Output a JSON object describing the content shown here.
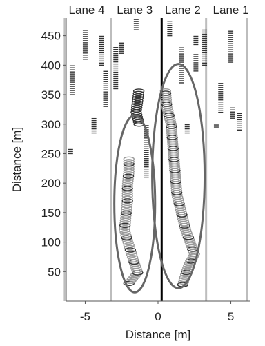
{
  "chart_data": {
    "type": "scatter",
    "title": "",
    "xlabel": "Distance [m]",
    "ylabel": "Distance [m]",
    "xlim": [
      -6.3,
      6.3
    ],
    "ylim": [
      0,
      480
    ],
    "x_ticks": [
      -5,
      0,
      5
    ],
    "y_ticks": [
      50,
      100,
      150,
      200,
      250,
      300,
      350,
      400,
      450
    ],
    "grid": false,
    "lane_labels": [
      {
        "label": "Lane 4",
        "center_x": -4.9
      },
      {
        "label": "Lane 3",
        "center_x": -1.6
      },
      {
        "label": "Lane 2",
        "center_x": 1.7
      },
      {
        "label": "Lane 1",
        "center_x": 5.0
      }
    ],
    "lane_boundaries": [
      -6.4,
      -3.2,
      3.3,
      6.1
    ],
    "centerline_x": 0.25,
    "colors": {
      "boundary": "#bdbdbd",
      "centerline": "#000000",
      "marker_dark": "#333333",
      "marker_light": "#9a9a9a",
      "ellipse": "#666666"
    },
    "dash_tracks": [
      {
        "x": -5.9,
        "y_from": 350,
        "y_to": 400
      },
      {
        "x": -5.0,
        "y_from": 410,
        "y_to": 460
      },
      {
        "x": -3.6,
        "y_from": 330,
        "y_to": 390
      },
      {
        "x": -3.9,
        "y_from": 400,
        "y_to": 450
      },
      {
        "x": -4.4,
        "y_from": 285,
        "y_to": 310
      },
      {
        "x": -6.0,
        "y_from": 250,
        "y_to": 258
      },
      {
        "x": -2.9,
        "y_from": 360,
        "y_to": 430
      },
      {
        "x": -2.5,
        "y_from": 420,
        "y_to": 440
      },
      {
        "x": -1.5,
        "y_from": 460,
        "y_to": 478
      },
      {
        "x": -0.8,
        "y_from": 210,
        "y_to": 300
      },
      {
        "x": 0.8,
        "y_from": 450,
        "y_to": 475
      },
      {
        "x": 1.6,
        "y_from": 370,
        "y_to": 430
      },
      {
        "x": 2.6,
        "y_from": 390,
        "y_to": 420
      },
      {
        "x": 2.6,
        "y_from": 435,
        "y_to": 450
      },
      {
        "x": 3.2,
        "y_from": 400,
        "y_to": 460
      },
      {
        "x": 4.0,
        "y_from": 295,
        "y_to": 300
      },
      {
        "x": 4.3,
        "y_from": 320,
        "y_to": 370
      },
      {
        "x": 5.0,
        "y_from": 405,
        "y_to": 460
      },
      {
        "x": 5.1,
        "y_from": 310,
        "y_to": 330
      },
      {
        "x": 5.6,
        "y_from": 290,
        "y_to": 320
      },
      {
        "x": 2.0,
        "y_from": 285,
        "y_to": 300
      }
    ],
    "trajectories": [
      {
        "name": "",
        "color": "#9a9a9a",
        "dark_every": 5,
        "points": [
          {
            "x": -2.0,
            "y": 30
          },
          {
            "x": -1.4,
            "y": 48
          },
          {
            "x": -1.7,
            "y": 70
          },
          {
            "x": -2.0,
            "y": 95
          },
          {
            "x": -2.3,
            "y": 120
          },
          {
            "x": -2.2,
            "y": 145
          },
          {
            "x": -2.1,
            "y": 170
          },
          {
            "x": -2.1,
            "y": 195
          },
          {
            "x": -2.0,
            "y": 220
          },
          {
            "x": -2.0,
            "y": 245
          }
        ]
      },
      {
        "name": "",
        "color": "#9a9a9a",
        "dark_every": 5,
        "points": [
          {
            "x": 1.7,
            "y": 28
          },
          {
            "x": 1.9,
            "y": 45
          },
          {
            "x": 2.1,
            "y": 60
          },
          {
            "x": 2.5,
            "y": 80
          },
          {
            "x": 2.2,
            "y": 100
          },
          {
            "x": 1.9,
            "y": 120
          },
          {
            "x": 1.6,
            "y": 150
          },
          {
            "x": 1.3,
            "y": 180
          },
          {
            "x": 1.2,
            "y": 210
          },
          {
            "x": 1.1,
            "y": 240
          },
          {
            "x": 1.0,
            "y": 270
          },
          {
            "x": 0.9,
            "y": 300
          },
          {
            "x": 0.6,
            "y": 330
          },
          {
            "x": 0.5,
            "y": 360
          }
        ]
      },
      {
        "name": "",
        "color": "#333333",
        "dark_every": 1,
        "points": [
          {
            "x": -1.3,
            "y": 300
          },
          {
            "x": -1.5,
            "y": 320
          },
          {
            "x": -1.4,
            "y": 340
          },
          {
            "x": -1.3,
            "y": 360
          }
        ]
      }
    ],
    "ellipses": [
      {
        "cx": -1.6,
        "cy": 165,
        "rx": 1.4,
        "ry": 150,
        "tilt_deg": 0
      },
      {
        "cx": 1.4,
        "cy": 212,
        "rx": 1.8,
        "ry": 190,
        "tilt_deg": 0
      }
    ]
  }
}
